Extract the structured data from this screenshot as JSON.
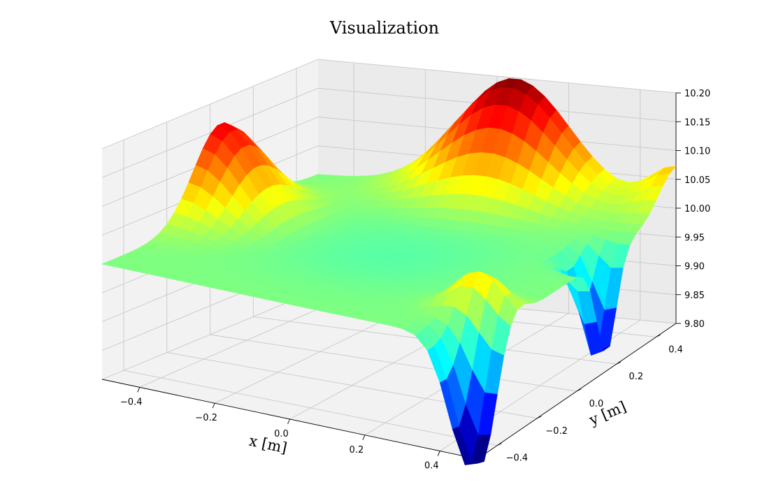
{
  "chart_data": {
    "type": "surface",
    "title": "Visualization",
    "xlabel": "x [m]",
    "ylabel": "y [m]",
    "zlabel": "",
    "xlim": [
      -0.5,
      0.5
    ],
    "ylim": [
      -0.5,
      0.5
    ],
    "zlim": [
      9.8,
      10.2
    ],
    "x_ticks": [
      "−0.4",
      "−0.2",
      "0.0",
      "0.2",
      "0.4"
    ],
    "y_ticks": [
      "−0.4",
      "−0.2",
      "0.0",
      "0.2",
      "0.4"
    ],
    "z_ticks": [
      "9.80",
      "9.85",
      "9.90",
      "9.95",
      "10.00",
      "10.05",
      "10.10",
      "10.15",
      "10.20"
    ],
    "grid": true,
    "colormap": "jet",
    "colormap_stops": [
      "#00007f",
      "#0000ff",
      "#007fff",
      "#00ffff",
      "#7fff7f",
      "#ffff00",
      "#ff7f00",
      "#ff0000",
      "#7f0000"
    ],
    "base_value": 10.0,
    "features": [
      {
        "name": "peak-back",
        "x": 0.05,
        "y": 0.45,
        "value": 10.2
      },
      {
        "name": "peak-left",
        "x": -0.45,
        "y": 0.05,
        "value": 10.16
      },
      {
        "name": "rise-back-right",
        "x": 0.45,
        "y": 0.45,
        "value": 10.07
      },
      {
        "name": "rise-front-center",
        "x": 0.4,
        "y": -0.3,
        "value": 10.07
      },
      {
        "name": "trough-front",
        "x": 0.45,
        "y": -0.45,
        "value": 9.78
      },
      {
        "name": "trough-right",
        "x": 0.45,
        "y": 0.15,
        "value": 9.82
      }
    ]
  }
}
